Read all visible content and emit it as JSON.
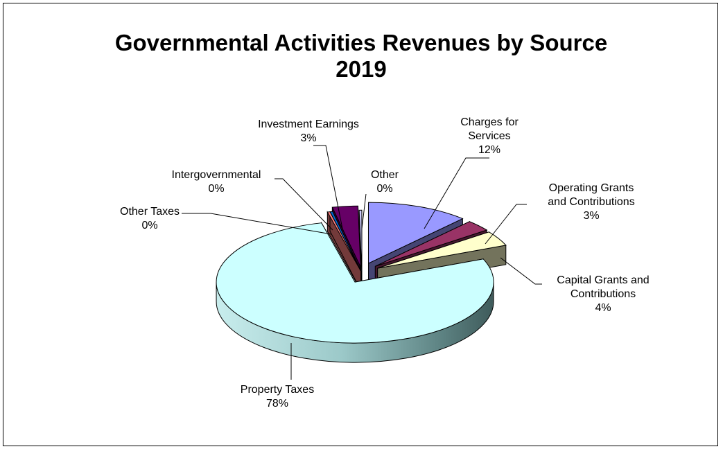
{
  "chart_data": {
    "type": "pie",
    "title_lines": [
      "Governmental Activities Revenues by Source",
      "2019"
    ],
    "slices": [
      {
        "label_lines": [
          "Charges for",
          "Services"
        ],
        "pct_text": "12%",
        "value": 12,
        "color": "#9999ff"
      },
      {
        "label_lines": [
          "Operating Grants",
          "and Contributions"
        ],
        "pct_text": "3%",
        "value": 3,
        "color": "#993366"
      },
      {
        "label_lines": [
          "Capital Grants and",
          "Contributions"
        ],
        "pct_text": "4%",
        "value": 4,
        "color": "#ffffcc"
      },
      {
        "label_lines": [
          "Property Taxes"
        ],
        "pct_text": "78%",
        "value": 78,
        "color": "#ccffff"
      },
      {
        "label_lines": [
          "Other Taxes"
        ],
        "pct_text": "0%",
        "value": 0,
        "color": "#ff8080"
      },
      {
        "label_lines": [
          "Intergovernmental"
        ],
        "pct_text": "0%",
        "value": 0,
        "color": "#0066cc"
      },
      {
        "label_lines": [
          "Investment Earnings"
        ],
        "pct_text": "3%",
        "value": 3,
        "color": "#660066"
      },
      {
        "label_lines": [
          "Other"
        ],
        "pct_text": "0%",
        "value": 0,
        "color": "#ccccff"
      }
    ]
  }
}
